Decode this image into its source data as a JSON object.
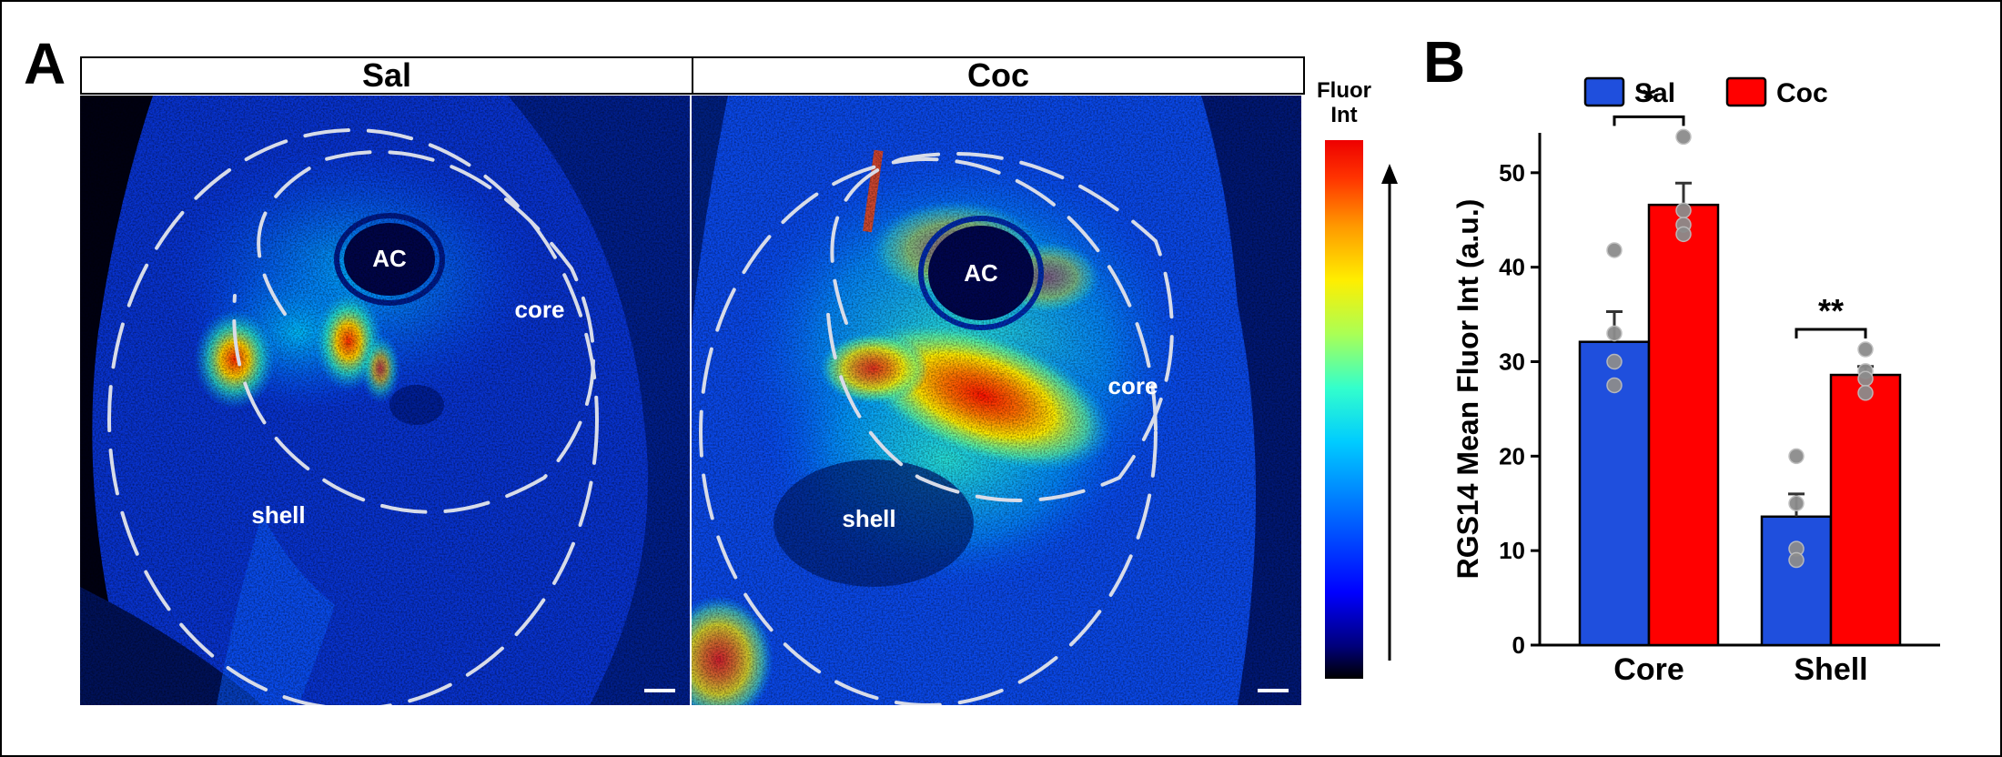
{
  "panel_a": {
    "letter": "A",
    "left_header": "Sal",
    "right_header": "Coc",
    "left_labels": {
      "ac": "AC",
      "core": "core",
      "shell": "shell"
    },
    "right_labels": {
      "ac": "AC",
      "core": "core",
      "shell": "shell"
    },
    "colorbar": {
      "title_line1": "Fluor",
      "title_line2": "Int"
    }
  },
  "panel_b": {
    "letter": "B"
  },
  "colors": {
    "sal": "#1f4fdd",
    "coc": "#ff0000",
    "dot": "#8c8c8c"
  },
  "chart_data": {
    "type": "bar",
    "categories": [
      "Core",
      "Shell"
    ],
    "ylabel": "RGS14 Mean Fluor Int (a.u.)",
    "ylim": [
      0,
      60
    ],
    "yticks": [
      0,
      10,
      20,
      30,
      40,
      50
    ],
    "legend": "top",
    "series": [
      {
        "name": "Sal",
        "color": "#1f4fdd",
        "values": [
          32.1,
          13.6
        ],
        "sem": [
          3.2,
          2.4
        ],
        "points": [
          [
            41.8,
            33.0,
            30.0,
            27.5
          ],
          [
            20.0,
            15.0,
            10.2,
            9.0
          ]
        ]
      },
      {
        "name": "Coc",
        "color": "#ff0000",
        "values": [
          46.6,
          28.6
        ],
        "sem": [
          2.3,
          0.9
        ],
        "points": [
          [
            53.8,
            46.0,
            44.5,
            43.5
          ],
          [
            31.3,
            29.0,
            28.2,
            26.7
          ]
        ]
      }
    ],
    "significance": [
      {
        "category": "Core",
        "label": "*"
      },
      {
        "category": "Shell",
        "label": "**"
      }
    ]
  }
}
